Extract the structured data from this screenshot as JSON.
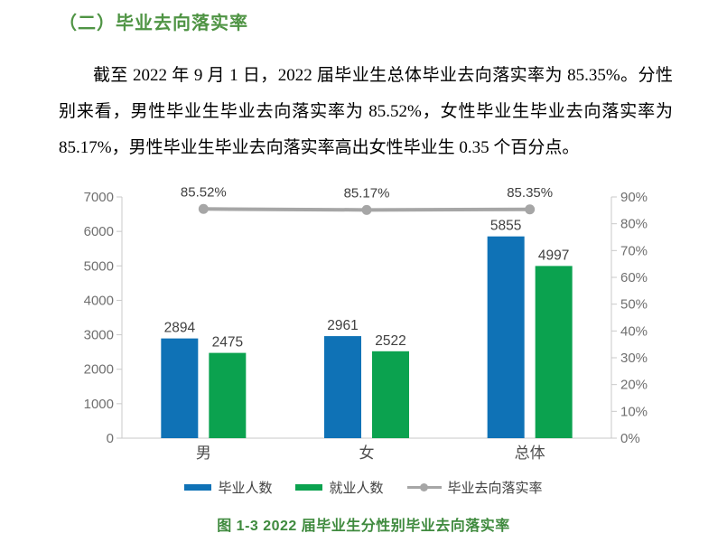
{
  "document": {
    "heading": "（二）毕业去向落实率",
    "paragraph": "截至 2022 年 9 月 1 日，2022 届毕业生总体毕业去向落实率为 85.35%。分性别来看，男性毕业生毕业去向落实率为 85.52%，女性毕业生毕业去向落实率为 85.17%，男性毕业生毕业去向落实率高出女性毕业生 0.35 个百分点。",
    "caption": "图 1-3 2022 届毕业生分性别毕业去向落实率"
  },
  "colors": {
    "heading_green": "#4f9444",
    "caption_green": "#3f8a3e",
    "bar_blue": "#0f72b6",
    "bar_green": "#0ba24f",
    "line_gray": "#a6a6a6",
    "axis_line": "#c9c9c9",
    "axis_text": "#6f6f6f",
    "label_text": "#404040",
    "category_text": "#4d4d4d"
  },
  "chart_data": {
    "type": "bar",
    "subtype": "grouped-bar-with-line-combo",
    "categories": [
      "男",
      "女",
      "总体"
    ],
    "series": [
      {
        "name": "毕业人数",
        "type": "bar",
        "color_key": "bar_blue",
        "values": [
          2894,
          2961,
          5855
        ]
      },
      {
        "name": "就业人数",
        "type": "bar",
        "color_key": "bar_green",
        "values": [
          2475,
          2522,
          4997
        ]
      },
      {
        "name": "毕业去向落实率",
        "type": "line",
        "color_key": "line_gray",
        "axis": "right",
        "values": [
          85.52,
          85.17,
          85.35
        ],
        "labels": [
          "85.52%",
          "85.17%",
          "85.35%"
        ]
      }
    ],
    "left_axis": {
      "min": 0,
      "max": 7000,
      "step": 1000,
      "tick_labels": [
        "0",
        "1000",
        "2000",
        "3000",
        "4000",
        "5000",
        "6000",
        "7000"
      ]
    },
    "right_axis": {
      "min": 0,
      "max": 90,
      "step": 10,
      "tick_labels": [
        "0%",
        "10%",
        "20%",
        "30%",
        "40%",
        "50%",
        "60%",
        "70%",
        "80%",
        "90%"
      ]
    },
    "grid": false,
    "legend_position": "bottom"
  }
}
